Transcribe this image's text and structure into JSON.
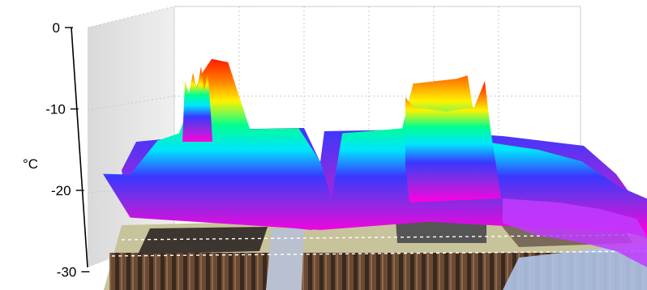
{
  "chart_data": {
    "type": "surface",
    "title": "",
    "xlabel": "",
    "ylabel": "°C",
    "zlim": [
      -30,
      0
    ],
    "z_ticks": [
      0,
      -10,
      -20,
      -30
    ],
    "z_tick_labels": [
      "0",
      "-10",
      "-20",
      "-30"
    ],
    "grid": true,
    "floor_texture": "photograph of a circuit board",
    "color_scale": [
      "#ff00e0",
      "#8a2be2",
      "#3a38ff",
      "#00e5ff",
      "#00ff90",
      "#fff200",
      "#ff7a00",
      "#ff1a00"
    ],
    "profile": [
      {
        "x": 0.0,
        "z": -18.0
      },
      {
        "x": 0.05,
        "z": -17.5
      },
      {
        "x": 0.1,
        "z": -14.0
      },
      {
        "x": 0.14,
        "z": -12.5
      },
      {
        "x": 0.18,
        "z": -6.0
      },
      {
        "x": 0.2,
        "z": -3.5
      },
      {
        "x": 0.23,
        "z": -4.5
      },
      {
        "x": 0.27,
        "z": -12.0
      },
      {
        "x": 0.36,
        "z": -12.5
      },
      {
        "x": 0.4,
        "z": -16.0
      },
      {
        "x": 0.42,
        "z": -21.0
      },
      {
        "x": 0.44,
        "z": -12.5
      },
      {
        "x": 0.55,
        "z": -12.5
      },
      {
        "x": 0.57,
        "z": -6.5
      },
      {
        "x": 0.65,
        "z": -6.5
      },
      {
        "x": 0.67,
        "z": -5.5
      },
      {
        "x": 0.69,
        "z": -14.0
      },
      {
        "x": 0.8,
        "z": -14.5
      },
      {
        "x": 0.88,
        "z": -16.5
      },
      {
        "x": 0.95,
        "z": -19.0
      },
      {
        "x": 1.0,
        "z": -21.0
      }
    ]
  }
}
